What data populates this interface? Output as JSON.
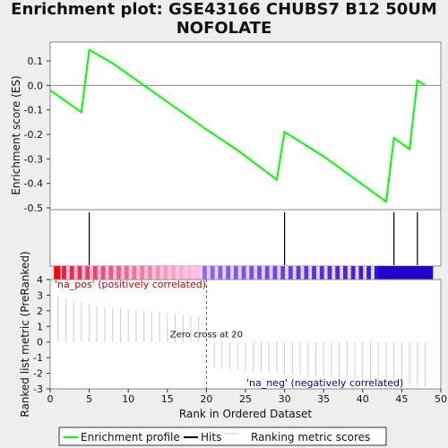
{
  "title_lines": [
    "Enrichment plot: GSE43166 CHUBS7 B12 50UM",
    "NOFOLATE"
  ],
  "colors": {
    "es_line": "#00ff00",
    "hits": "#000000",
    "metric": "#cccccc",
    "pos_label": "#cc0000",
    "neg_label": "#0000aa",
    "zero_cross": "#555555"
  },
  "chart_data": [
    {
      "type": "line",
      "title": "",
      "ylabel": "Enrichment score (ES)",
      "xlim": [
        0,
        50
      ],
      "ylim": [
        -0.5,
        0.18
      ],
      "y_ticks": [
        "0.1",
        "0.0",
        "-0.1",
        "-0.2",
        "-0.3",
        "-0.4",
        "-0.5"
      ],
      "y_tick_values": [
        0.1,
        0.0,
        -0.1,
        -0.2,
        -0.3,
        -0.4,
        -0.5
      ],
      "series": [
        {
          "name": "Enrichment profile",
          "x": [
            0,
            4,
            5,
            8,
            12,
            16,
            20,
            24,
            29,
            30,
            35,
            40,
            43,
            44,
            46,
            47,
            48
          ],
          "y": [
            -0.02,
            -0.11,
            0.145,
            0.09,
            0.0,
            -0.09,
            -0.18,
            -0.265,
            -0.385,
            -0.19,
            -0.29,
            -0.405,
            -0.475,
            -0.215,
            -0.26,
            0.02,
            0.0
          ]
        }
      ]
    },
    {
      "type": "bar",
      "title": "",
      "series": [
        {
          "name": "Hits",
          "x": [
            5,
            30,
            44,
            47
          ]
        }
      ]
    },
    {
      "type": "bar",
      "title": "",
      "xlabel": "Rank in Ordered Dataset",
      "ylabel": "Ranked list metric (PreRanked)",
      "xlim": [
        0,
        50
      ],
      "ylim": [
        -3,
        4
      ],
      "x_ticks": [
        "0",
        "5",
        "10",
        "15",
        "20",
        "25",
        "30",
        "35",
        "40",
        "45",
        "50"
      ],
      "x_tick_values": [
        0,
        5,
        10,
        15,
        20,
        25,
        30,
        35,
        40,
        45,
        50
      ],
      "y_ticks": [
        "4",
        "3",
        "2",
        "1",
        "0",
        "-1",
        "-2",
        "-3"
      ],
      "y_tick_values": [
        4,
        3,
        2,
        1,
        0,
        -1,
        -2,
        -3
      ],
      "series": [
        {
          "name": "Ranking metric scores",
          "x": [
            1,
            2,
            3,
            4,
            5,
            6,
            7,
            8,
            9,
            10,
            11,
            12,
            13,
            14,
            15,
            16,
            17,
            18,
            19,
            21,
            22,
            23,
            24,
            25,
            26,
            27,
            28,
            29,
            30,
            31,
            32,
            33,
            34,
            35,
            36,
            37,
            38,
            39,
            40,
            41,
            42,
            43,
            44,
            45,
            46,
            47,
            48
          ],
          "values": [
            3.0,
            2.8,
            2.6,
            2.55,
            2.4,
            2.3,
            2.25,
            2.2,
            2.15,
            2.1,
            2.05,
            2.0,
            1.95,
            1.9,
            1.85,
            1.8,
            1.75,
            1.65,
            1.6,
            -1.65,
            -1.7,
            -1.75,
            -1.8,
            -1.85,
            -1.9,
            -1.95,
            -2.0,
            -2.0,
            -2.05,
            -2.1,
            -2.1,
            -2.15,
            -2.2,
            -2.2,
            -2.25,
            -2.3,
            -2.35,
            -2.4,
            -2.45,
            -2.5,
            -2.55,
            -2.6,
            -2.65,
            -2.7,
            -2.75,
            -2.8,
            -2.85
          ]
        }
      ],
      "annotations": {
        "pos": "'na_pos' (positively correlated)",
        "neg": "'na_neg' (negatively correlated)",
        "zero_cross": "Zero cross at 20",
        "zero_cross_x": 20
      }
    }
  ],
  "legend": {
    "placement": "bottom",
    "items": [
      {
        "label": "Enrichment profile",
        "color": "#00ff00"
      },
      {
        "label": "Hits",
        "color": "#000000"
      },
      {
        "label": "Ranking metric scores",
        "color": "#cccccc"
      }
    ]
  }
}
